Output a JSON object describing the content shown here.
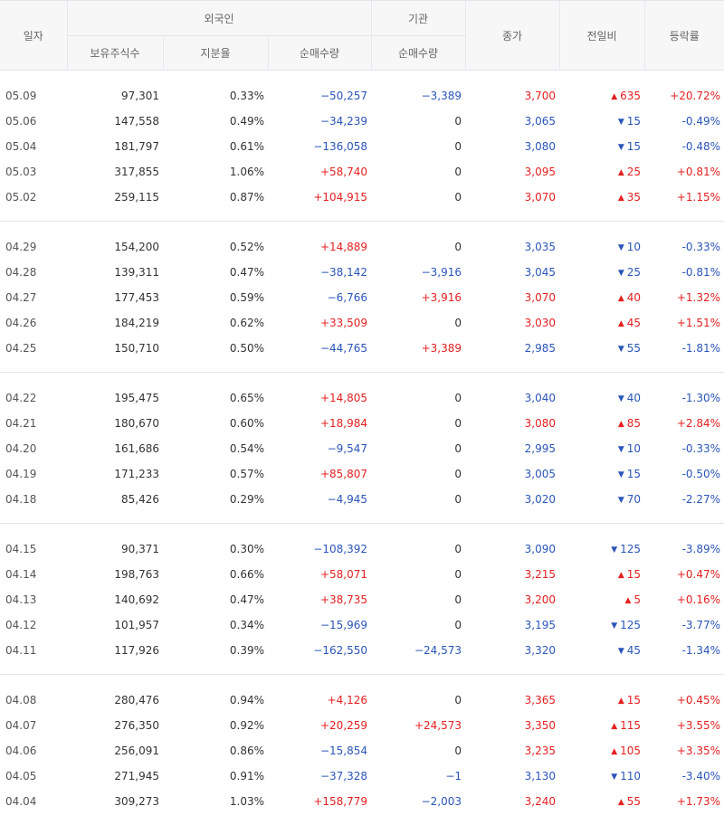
{
  "header": {
    "date": "일자",
    "foreign": "외국인",
    "institution": "기관",
    "holdings": "보유주식수",
    "ratio": "지분율",
    "foreign_net": "순매수량",
    "inst_net": "순매수량",
    "close": "종가",
    "change": "전일비",
    "rate": "등락률"
  },
  "colors": {
    "up": "#e42021",
    "down": "#2b55b9"
  },
  "groups": [
    [
      {
        "date": "05.09",
        "holdings": "97,301",
        "ratio": "0.33%",
        "foreign_net": "−50,257",
        "inst_net": "−3,389",
        "close": "3,700",
        "dir": "up",
        "change": "635",
        "rate": "+20.72%"
      },
      {
        "date": "05.06",
        "holdings": "147,558",
        "ratio": "0.49%",
        "foreign_net": "−34,239",
        "inst_net": "0",
        "close": "3,065",
        "dir": "down",
        "change": "15",
        "rate": "-0.49%"
      },
      {
        "date": "05.04",
        "holdings": "181,797",
        "ratio": "0.61%",
        "foreign_net": "−136,058",
        "inst_net": "0",
        "close": "3,080",
        "dir": "down",
        "change": "15",
        "rate": "-0.48%"
      },
      {
        "date": "05.03",
        "holdings": "317,855",
        "ratio": "1.06%",
        "foreign_net": "+58,740",
        "inst_net": "0",
        "close": "3,095",
        "dir": "up",
        "change": "25",
        "rate": "+0.81%"
      },
      {
        "date": "05.02",
        "holdings": "259,115",
        "ratio": "0.87%",
        "foreign_net": "+104,915",
        "inst_net": "0",
        "close": "3,070",
        "dir": "up",
        "change": "35",
        "rate": "+1.15%"
      }
    ],
    [
      {
        "date": "04.29",
        "holdings": "154,200",
        "ratio": "0.52%",
        "foreign_net": "+14,889",
        "inst_net": "0",
        "close": "3,035",
        "dir": "down",
        "change": "10",
        "rate": "-0.33%"
      },
      {
        "date": "04.28",
        "holdings": "139,311",
        "ratio": "0.47%",
        "foreign_net": "−38,142",
        "inst_net": "−3,916",
        "close": "3,045",
        "dir": "down",
        "change": "25",
        "rate": "-0.81%"
      },
      {
        "date": "04.27",
        "holdings": "177,453",
        "ratio": "0.59%",
        "foreign_net": "−6,766",
        "inst_net": "+3,916",
        "close": "3,070",
        "dir": "up",
        "change": "40",
        "rate": "+1.32%"
      },
      {
        "date": "04.26",
        "holdings": "184,219",
        "ratio": "0.62%",
        "foreign_net": "+33,509",
        "inst_net": "0",
        "close": "3,030",
        "dir": "up",
        "change": "45",
        "rate": "+1.51%"
      },
      {
        "date": "04.25",
        "holdings": "150,710",
        "ratio": "0.50%",
        "foreign_net": "−44,765",
        "inst_net": "+3,389",
        "close": "2,985",
        "dir": "down",
        "change": "55",
        "rate": "-1.81%"
      }
    ],
    [
      {
        "date": "04.22",
        "holdings": "195,475",
        "ratio": "0.65%",
        "foreign_net": "+14,805",
        "inst_net": "0",
        "close": "3,040",
        "dir": "down",
        "change": "40",
        "rate": "-1.30%"
      },
      {
        "date": "04.21",
        "holdings": "180,670",
        "ratio": "0.60%",
        "foreign_net": "+18,984",
        "inst_net": "0",
        "close": "3,080",
        "dir": "up",
        "change": "85",
        "rate": "+2.84%"
      },
      {
        "date": "04.20",
        "holdings": "161,686",
        "ratio": "0.54%",
        "foreign_net": "−9,547",
        "inst_net": "0",
        "close": "2,995",
        "dir": "down",
        "change": "10",
        "rate": "-0.33%"
      },
      {
        "date": "04.19",
        "holdings": "171,233",
        "ratio": "0.57%",
        "foreign_net": "+85,807",
        "inst_net": "0",
        "close": "3,005",
        "dir": "down",
        "change": "15",
        "rate": "-0.50%"
      },
      {
        "date": "04.18",
        "holdings": "85,426",
        "ratio": "0.29%",
        "foreign_net": "−4,945",
        "inst_net": "0",
        "close": "3,020",
        "dir": "down",
        "change": "70",
        "rate": "-2.27%"
      }
    ],
    [
      {
        "date": "04.15",
        "holdings": "90,371",
        "ratio": "0.30%",
        "foreign_net": "−108,392",
        "inst_net": "0",
        "close": "3,090",
        "dir": "down",
        "change": "125",
        "rate": "-3.89%"
      },
      {
        "date": "04.14",
        "holdings": "198,763",
        "ratio": "0.66%",
        "foreign_net": "+58,071",
        "inst_net": "0",
        "close": "3,215",
        "dir": "up",
        "change": "15",
        "rate": "+0.47%"
      },
      {
        "date": "04.13",
        "holdings": "140,692",
        "ratio": "0.47%",
        "foreign_net": "+38,735",
        "inst_net": "0",
        "close": "3,200",
        "dir": "up",
        "change": "5",
        "rate": "+0.16%"
      },
      {
        "date": "04.12",
        "holdings": "101,957",
        "ratio": "0.34%",
        "foreign_net": "−15,969",
        "inst_net": "0",
        "close": "3,195",
        "dir": "down",
        "change": "125",
        "rate": "-3.77%"
      },
      {
        "date": "04.11",
        "holdings": "117,926",
        "ratio": "0.39%",
        "foreign_net": "−162,550",
        "inst_net": "−24,573",
        "close": "3,320",
        "dir": "down",
        "change": "45",
        "rate": "-1.34%"
      }
    ],
    [
      {
        "date": "04.08",
        "holdings": "280,476",
        "ratio": "0.94%",
        "foreign_net": "+4,126",
        "inst_net": "0",
        "close": "3,365",
        "dir": "up",
        "change": "15",
        "rate": "+0.45%"
      },
      {
        "date": "04.07",
        "holdings": "276,350",
        "ratio": "0.92%",
        "foreign_net": "+20,259",
        "inst_net": "+24,573",
        "close": "3,350",
        "dir": "up",
        "change": "115",
        "rate": "+3.55%"
      },
      {
        "date": "04.06",
        "holdings": "256,091",
        "ratio": "0.86%",
        "foreign_net": "−15,854",
        "inst_net": "0",
        "close": "3,235",
        "dir": "up",
        "change": "105",
        "rate": "+3.35%"
      },
      {
        "date": "04.05",
        "holdings": "271,945",
        "ratio": "0.91%",
        "foreign_net": "−37,328",
        "inst_net": "−1",
        "close": "3,130",
        "dir": "down",
        "change": "110",
        "rate": "-3.40%"
      },
      {
        "date": "04.04",
        "holdings": "309,273",
        "ratio": "1.03%",
        "foreign_net": "+158,779",
        "inst_net": "−2,003",
        "close": "3,240",
        "dir": "up",
        "change": "55",
        "rate": "+1.73%"
      }
    ]
  ]
}
